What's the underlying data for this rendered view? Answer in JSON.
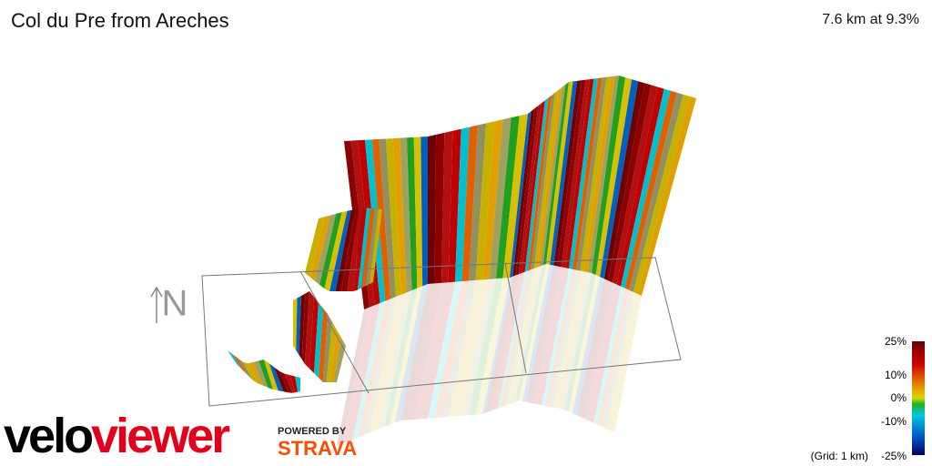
{
  "header": {
    "title": "Col du Pre from Areches",
    "stats": "7.6 km at 9.3%"
  },
  "compass": {
    "label": "N"
  },
  "legend": {
    "labels": [
      "25%",
      "10%",
      "0%",
      "-10%",
      "-25%"
    ],
    "grid_note": "(Grid: 1 km)"
  },
  "branding": {
    "logo": "veloviewer",
    "powered_by": "POWERED BY",
    "strava": "STRAVA"
  }
}
